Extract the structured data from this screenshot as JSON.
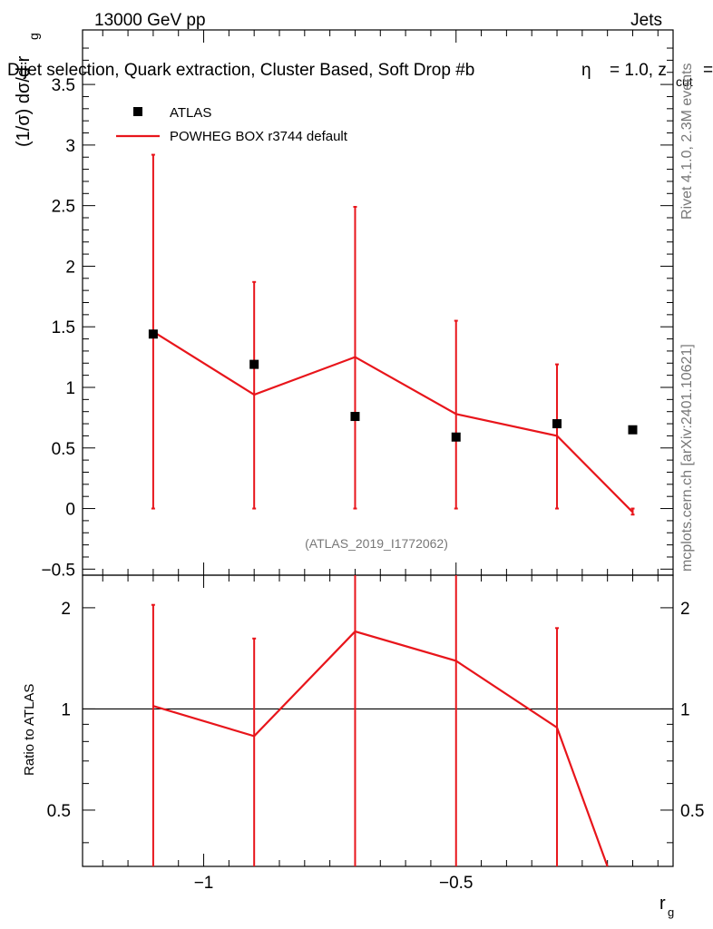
{
  "header": {
    "energy_label": "13000 GeV pp",
    "category_label": "Jets",
    "selection_title": "Dijet selection, Quark extraction, Cluster Based, Soft Drop #b",
    "beta_text": "= 1.0, z",
    "zcut_sub": "cut",
    "zcut_eq": "=",
    "beta_symbol": "η"
  },
  "side_labels": {
    "rivet": "Rivet 4.1.0,  2.3M events",
    "mcplots": "mcplots.cern.ch [arXiv:2401.10621]"
  },
  "analysis_id": "(ATLAS_2019_I1772062)",
  "legend": {
    "data_label": "ATLAS",
    "mc_label": "POWHEG BOX r3744 default"
  },
  "axes": {
    "main_ylabel_pre": "(1/σ) dσ/d r",
    "main_ylabel_sub": "g",
    "ratio_ylabel": "Ratio to ATLAS",
    "xlabel": "r",
    "xlabel_sub": "g"
  },
  "colors": {
    "mc": "#e8151b",
    "data": "#000000"
  },
  "chart_data": [
    {
      "type": "scatter",
      "panel": "main",
      "xlim": [
        -1.24,
        -0.07
      ],
      "ylim": [
        -0.55,
        3.95
      ],
      "yticks": [
        -0.5,
        0,
        0.5,
        1,
        1.5,
        2,
        2.5,
        3,
        3.5
      ],
      "ytick_labels": [
        "−0.5",
        "0",
        "0.5",
        "1",
        "1.5",
        "2",
        "2.5",
        "3",
        "3.5"
      ],
      "data_series": {
        "name": "ATLAS",
        "x": [
          -1.1,
          -0.9,
          -0.7,
          -0.5,
          -0.3,
          -0.15
        ],
        "y": [
          1.44,
          1.19,
          0.76,
          0.59,
          0.7,
          0.65
        ]
      },
      "mc_series": {
        "name": "POWHEG BOX r3744 default",
        "x": [
          -1.1,
          -0.9,
          -0.7,
          -0.5,
          -0.3,
          -0.15
        ],
        "y": [
          1.46,
          0.94,
          1.25,
          0.78,
          0.6,
          -0.03
        ],
        "err_low": [
          0,
          0,
          0,
          0,
          0,
          -0.05
        ],
        "err_high": [
          2.92,
          1.87,
          2.49,
          1.55,
          1.19,
          0.0
        ]
      }
    },
    {
      "type": "line",
      "panel": "ratio",
      "scale": "log",
      "xlim": [
        -1.24,
        -0.07
      ],
      "ylim": [
        0.34,
        2.5
      ],
      "yticks": [
        0.5,
        1,
        2
      ],
      "ytick_labels": [
        "0.5",
        "1",
        "2"
      ],
      "xticks": [
        -1,
        -0.5
      ],
      "xtick_labels": [
        "−1",
        "−0.5"
      ],
      "reference": 1.0,
      "mc_ratio": {
        "name": "POWHEG BOX r3744 default",
        "x": [
          -1.1,
          -0.9,
          -0.7,
          -0.5,
          -0.3,
          -0.2
        ],
        "y": [
          1.02,
          0.83,
          1.7,
          1.39,
          0.88,
          0.34
        ],
        "err_low": [
          0.34,
          0.34,
          0.34,
          0.34,
          0.34,
          null
        ],
        "err_high": [
          2.04,
          1.62,
          2.5,
          2.5,
          1.74,
          null
        ]
      }
    }
  ]
}
